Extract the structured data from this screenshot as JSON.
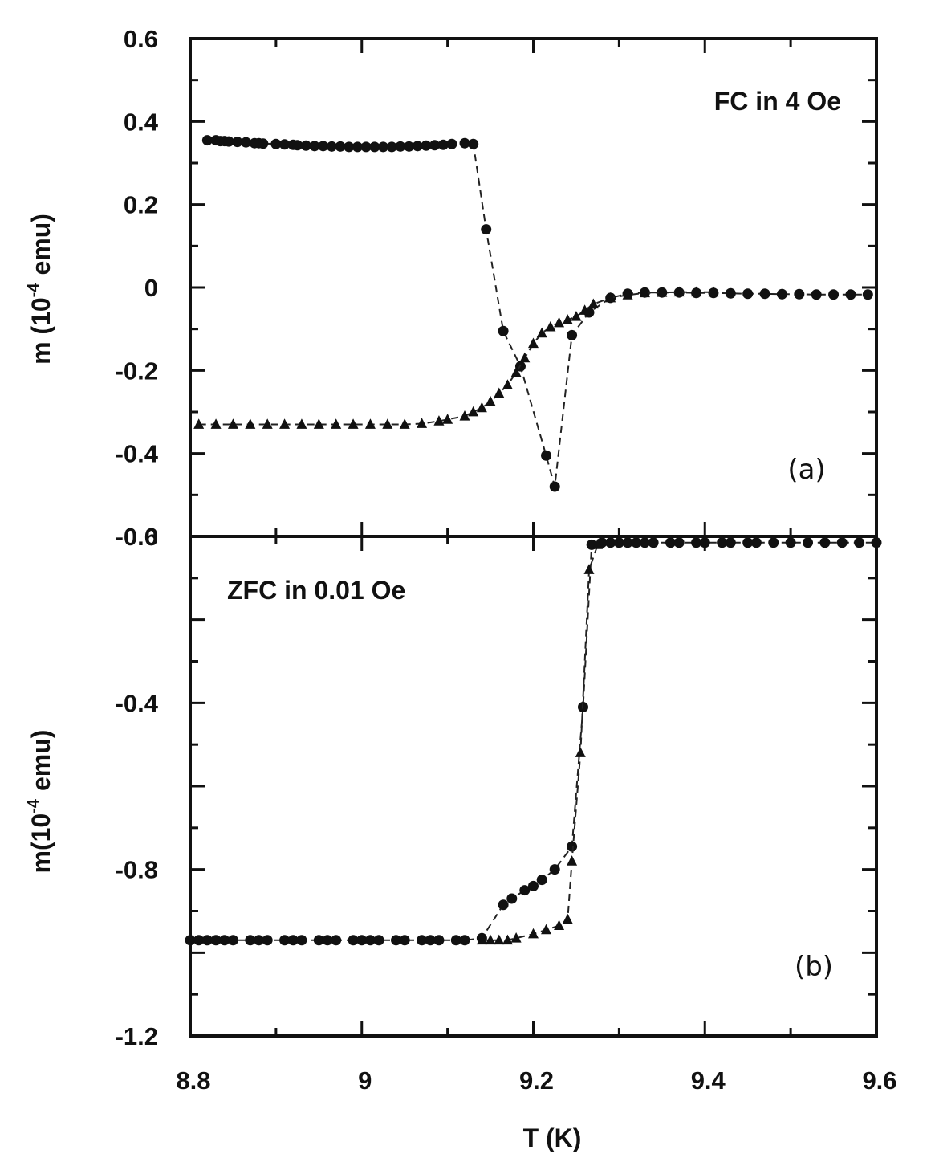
{
  "chart_data": [
    {
      "type": "scatter",
      "panel": "(a)",
      "annotation": "FC in 4 Oe",
      "xlabel": "T (K)",
      "ylabel": "m (10",
      "ylabel_sup": "-4",
      "ylabel_unit": "emu)",
      "xlim": [
        8.8,
        9.6
      ],
      "ylim": [
        -0.6,
        0.6
      ],
      "xticks": [
        "8.8",
        "9",
        "9.2",
        "9.4",
        "9.6"
      ],
      "yticks": [
        "0.6",
        "0.4",
        "0.2",
        "0",
        "-0.2",
        "-0.4",
        "-0.6"
      ],
      "series": [
        {
          "marker": "circle",
          "points": [
            [
              8.82,
              0.355
            ],
            [
              8.83,
              0.355
            ],
            [
              8.835,
              0.353
            ],
            [
              8.84,
              0.353
            ],
            [
              8.845,
              0.352
            ],
            [
              8.855,
              0.351
            ],
            [
              8.865,
              0.35
            ],
            [
              8.875,
              0.348
            ],
            [
              8.88,
              0.348
            ],
            [
              8.885,
              0.347
            ],
            [
              8.9,
              0.346
            ],
            [
              8.91,
              0.345
            ],
            [
              8.92,
              0.344
            ],
            [
              8.925,
              0.343
            ],
            [
              8.935,
              0.342
            ],
            [
              8.945,
              0.341
            ],
            [
              8.955,
              0.341
            ],
            [
              8.965,
              0.34
            ],
            [
              8.975,
              0.34
            ],
            [
              8.985,
              0.339
            ],
            [
              8.995,
              0.339
            ],
            [
              9.005,
              0.339
            ],
            [
              9.015,
              0.339
            ],
            [
              9.025,
              0.339
            ],
            [
              9.035,
              0.339
            ],
            [
              9.045,
              0.34
            ],
            [
              9.055,
              0.34
            ],
            [
              9.065,
              0.341
            ],
            [
              9.075,
              0.342
            ],
            [
              9.085,
              0.343
            ],
            [
              9.095,
              0.344
            ],
            [
              9.105,
              0.346
            ],
            [
              9.12,
              0.348
            ],
            [
              9.13,
              0.346
            ],
            [
              9.145,
              0.14
            ],
            [
              9.165,
              -0.105
            ],
            [
              9.185,
              -0.19
            ],
            [
              9.215,
              -0.405
            ],
            [
              9.225,
              -0.48
            ],
            [
              9.245,
              -0.115
            ],
            [
              9.265,
              -0.06
            ],
            [
              9.29,
              -0.025
            ],
            [
              9.31,
              -0.015
            ],
            [
              9.33,
              -0.012
            ],
            [
              9.35,
              -0.012
            ],
            [
              9.37,
              -0.012
            ],
            [
              9.39,
              -0.013
            ],
            [
              9.41,
              -0.013
            ],
            [
              9.43,
              -0.014
            ],
            [
              9.45,
              -0.015
            ],
            [
              9.47,
              -0.015
            ],
            [
              9.49,
              -0.016
            ],
            [
              9.51,
              -0.016
            ],
            [
              9.53,
              -0.017
            ],
            [
              9.55,
              -0.017
            ],
            [
              9.57,
              -0.017
            ],
            [
              9.59,
              -0.017
            ]
          ]
        },
        {
          "marker": "triangle",
          "points": [
            [
              8.81,
              -0.33
            ],
            [
              8.83,
              -0.33
            ],
            [
              8.85,
              -0.33
            ],
            [
              8.87,
              -0.33
            ],
            [
              8.89,
              -0.33
            ],
            [
              8.91,
              -0.33
            ],
            [
              8.93,
              -0.33
            ],
            [
              8.95,
              -0.33
            ],
            [
              8.97,
              -0.33
            ],
            [
              8.99,
              -0.33
            ],
            [
              9.01,
              -0.33
            ],
            [
              9.03,
              -0.33
            ],
            [
              9.05,
              -0.33
            ],
            [
              9.07,
              -0.328
            ],
            [
              9.09,
              -0.322
            ],
            [
              9.1,
              -0.318
            ],
            [
              9.12,
              -0.31
            ],
            [
              9.13,
              -0.3
            ],
            [
              9.14,
              -0.29
            ],
            [
              9.15,
              -0.275
            ],
            [
              9.16,
              -0.255
            ],
            [
              9.17,
              -0.235
            ],
            [
              9.18,
              -0.205
            ],
            [
              9.19,
              -0.17
            ],
            [
              9.2,
              -0.135
            ],
            [
              9.21,
              -0.11
            ],
            [
              9.22,
              -0.095
            ],
            [
              9.23,
              -0.085
            ],
            [
              9.24,
              -0.078
            ],
            [
              9.25,
              -0.07
            ],
            [
              9.26,
              -0.055
            ],
            [
              9.27,
              -0.04
            ],
            [
              9.29,
              -0.025
            ],
            [
              9.31,
              -0.018
            ],
            [
              9.33,
              -0.013
            ],
            [
              9.35,
              -0.012
            ],
            [
              9.37,
              -0.011
            ],
            [
              9.39,
              -0.011
            ],
            [
              9.41,
              -0.011
            ]
          ]
        }
      ]
    },
    {
      "type": "scatter",
      "panel": "(b)",
      "annotation": "ZFC in 0.01 Oe",
      "xlabel": "T (K)",
      "ylabel": "m(10",
      "ylabel_sup": "-4",
      "ylabel_unit": "emu)",
      "xlim": [
        8.8,
        9.6
      ],
      "ylim": [
        -1.2,
        0.0
      ],
      "xticks": [
        "8.8",
        "9",
        "9.2",
        "9.4",
        "9.6"
      ],
      "yticks": [
        "0",
        "-0.4",
        "-0.8",
        "-1.2"
      ],
      "series": [
        {
          "marker": "circle",
          "points": [
            [
              8.8,
              -0.97
            ],
            [
              8.81,
              -0.97
            ],
            [
              8.82,
              -0.97
            ],
            [
              8.83,
              -0.97
            ],
            [
              8.84,
              -0.97
            ],
            [
              8.85,
              -0.97
            ],
            [
              8.87,
              -0.97
            ],
            [
              8.88,
              -0.97
            ],
            [
              8.89,
              -0.97
            ],
            [
              8.91,
              -0.97
            ],
            [
              8.92,
              -0.97
            ],
            [
              8.93,
              -0.97
            ],
            [
              8.95,
              -0.97
            ],
            [
              8.96,
              -0.97
            ],
            [
              8.97,
              -0.97
            ],
            [
              8.99,
              -0.97
            ],
            [
              9.0,
              -0.97
            ],
            [
              9.01,
              -0.97
            ],
            [
              9.02,
              -0.97
            ],
            [
              9.04,
              -0.97
            ],
            [
              9.05,
              -0.97
            ],
            [
              9.07,
              -0.97
            ],
            [
              9.08,
              -0.97
            ],
            [
              9.09,
              -0.97
            ],
            [
              9.11,
              -0.97
            ],
            [
              9.12,
              -0.97
            ],
            [
              9.14,
              -0.965
            ],
            [
              9.165,
              -0.885
            ],
            [
              9.175,
              -0.87
            ],
            [
              9.19,
              -0.85
            ],
            [
              9.2,
              -0.84
            ],
            [
              9.21,
              -0.825
            ],
            [
              9.225,
              -0.8
            ],
            [
              9.245,
              -0.745
            ],
            [
              9.258,
              -0.41
            ],
            [
              9.268,
              -0.02
            ],
            [
              9.28,
              -0.015
            ],
            [
              9.29,
              -0.015
            ],
            [
              9.3,
              -0.015
            ],
            [
              9.31,
              -0.015
            ],
            [
              9.32,
              -0.015
            ],
            [
              9.33,
              -0.015
            ],
            [
              9.34,
              -0.015
            ],
            [
              9.36,
              -0.015
            ],
            [
              9.37,
              -0.015
            ],
            [
              9.39,
              -0.015
            ],
            [
              9.4,
              -0.015
            ],
            [
              9.42,
              -0.015
            ],
            [
              9.43,
              -0.015
            ],
            [
              9.45,
              -0.015
            ],
            [
              9.46,
              -0.015
            ],
            [
              9.48,
              -0.015
            ],
            [
              9.5,
              -0.015
            ],
            [
              9.52,
              -0.015
            ],
            [
              9.54,
              -0.015
            ],
            [
              9.56,
              -0.015
            ],
            [
              9.58,
              -0.015
            ],
            [
              9.6,
              -0.015
            ]
          ]
        },
        {
          "marker": "triangle",
          "points": [
            [
              9.14,
              -0.97
            ],
            [
              9.15,
              -0.97
            ],
            [
              9.16,
              -0.97
            ],
            [
              9.17,
              -0.97
            ],
            [
              9.18,
              -0.965
            ],
            [
              9.2,
              -0.955
            ],
            [
              9.215,
              -0.945
            ],
            [
              9.23,
              -0.935
            ],
            [
              9.24,
              -0.92
            ],
            [
              9.245,
              -0.78
            ],
            [
              9.255,
              -0.52
            ],
            [
              9.265,
              -0.08
            ],
            [
              9.275,
              -0.02
            ]
          ]
        }
      ]
    }
  ]
}
